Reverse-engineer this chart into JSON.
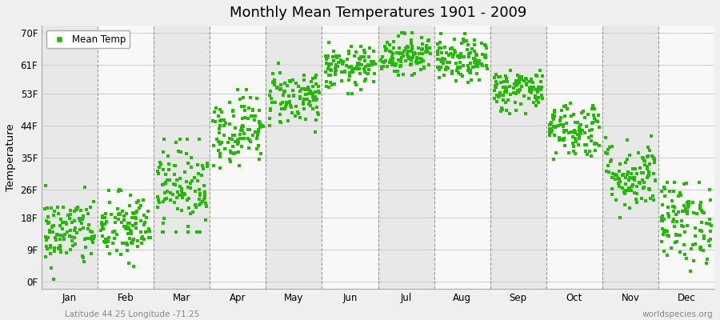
{
  "title": "Monthly Mean Temperatures 1901 - 2009",
  "ylabel": "Temperature",
  "xlabel_bottom_left": "Latitude 44.25 Longitude -71.25",
  "xlabel_bottom_right": "worldspecies.org",
  "legend_label": "Mean Temp",
  "dot_color": "#22BB00",
  "background_color": "#EFEFEF",
  "band_colors": [
    "#E8E8E8",
    "#F8F8F8"
  ],
  "yticks": [
    0,
    9,
    18,
    26,
    35,
    44,
    53,
    61,
    70
  ],
  "ytick_labels": [
    "0F",
    "9F",
    "18F",
    "26F",
    "35F",
    "44F",
    "53F",
    "61F",
    "70F"
  ],
  "months": [
    "Jan",
    "Feb",
    "Mar",
    "Apr",
    "May",
    "Jun",
    "Jul",
    "Aug",
    "Sep",
    "Oct",
    "Nov",
    "Dec"
  ],
  "month_means": [
    14,
    15,
    27,
    43,
    52,
    60,
    64,
    62,
    54,
    43,
    30,
    17
  ],
  "month_stds": [
    5,
    5,
    6,
    5,
    4,
    3,
    3,
    3,
    3,
    4,
    5,
    6
  ],
  "month_mins": [
    0,
    0,
    14,
    32,
    42,
    53,
    58,
    56,
    46,
    33,
    18,
    3
  ],
  "month_maxs": [
    27,
    28,
    40,
    54,
    62,
    68,
    70,
    70,
    62,
    54,
    42,
    28
  ],
  "n_years": 109,
  "seed": 42
}
